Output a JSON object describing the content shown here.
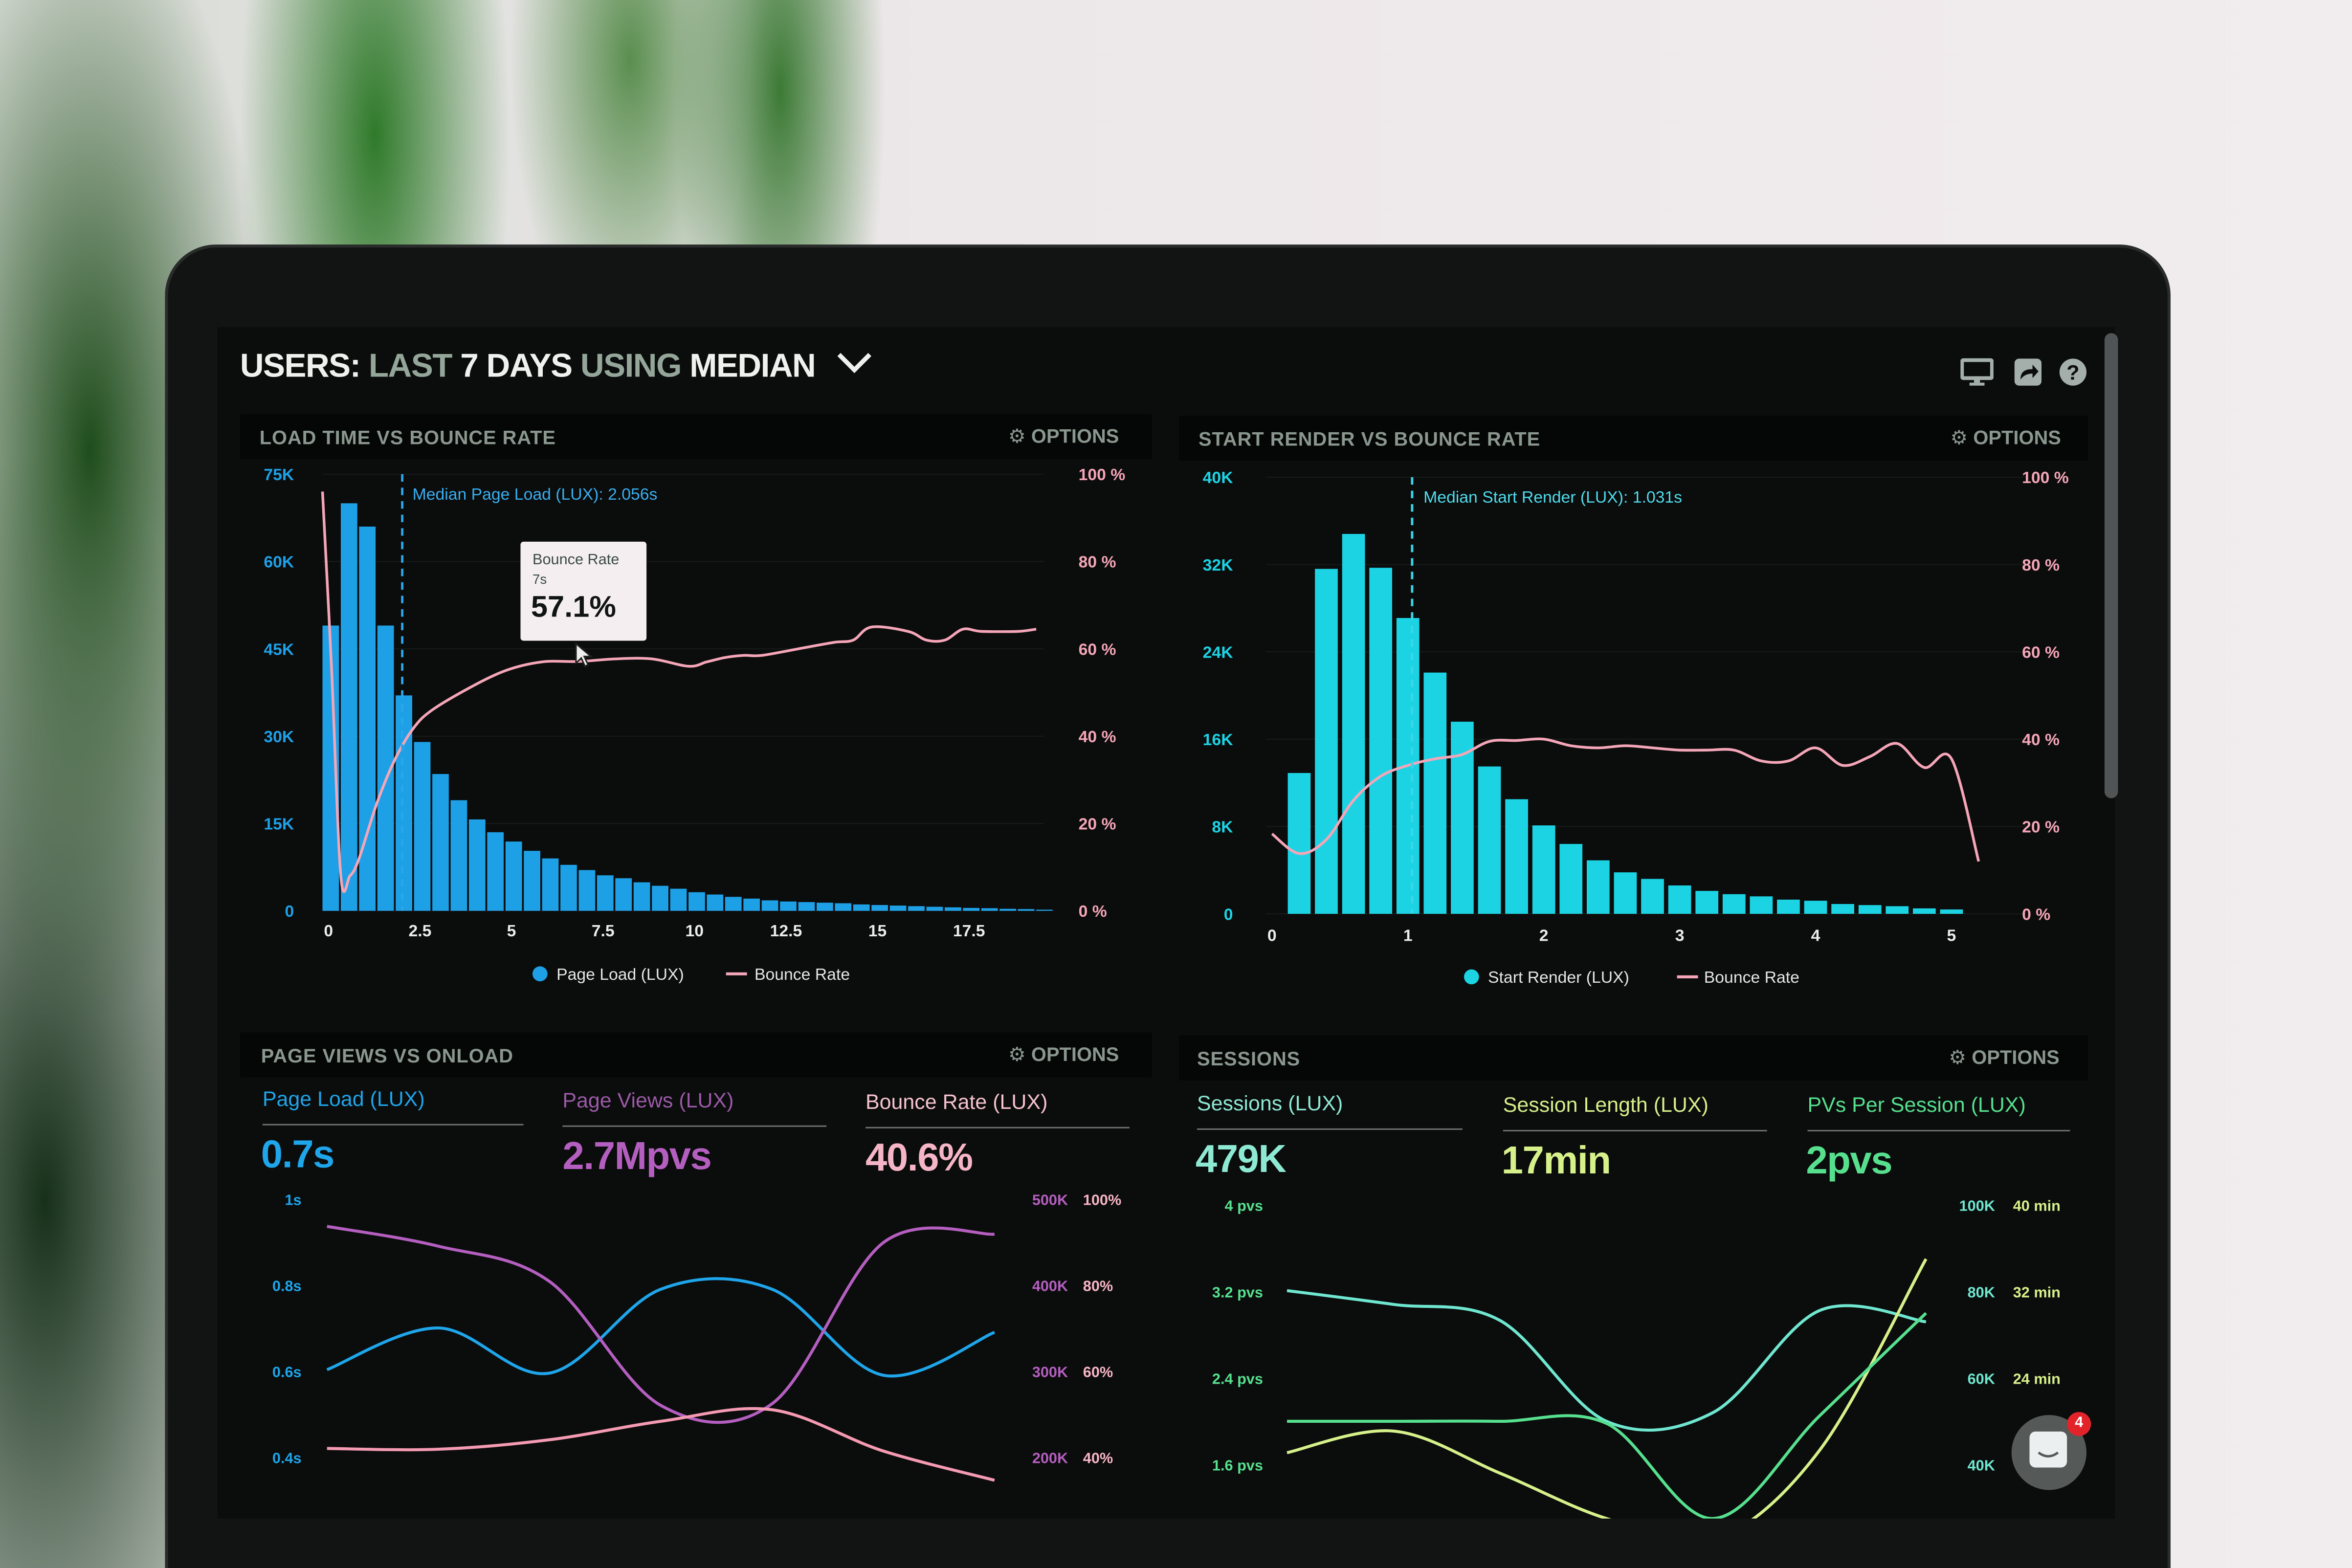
{
  "header": {
    "title_parts": [
      "USERS:",
      "LAST",
      "7 DAYS",
      "USING",
      "MEDIAN"
    ],
    "icons": [
      "monitor-icon",
      "share-icon",
      "help-icon"
    ]
  },
  "panels": {
    "load_time": {
      "title": "LOAD TIME VS BOUNCE RATE",
      "options_label": "OPTIONS"
    },
    "start_render": {
      "title": "START RENDER VS BOUNCE RATE",
      "options_label": "OPTIONS"
    },
    "page_views": {
      "title": "PAGE VIEWS VS ONLOAD",
      "options_label": "OPTIONS",
      "metrics": [
        {
          "label": "Page Load (LUX)",
          "value": "0.7s",
          "color": "#1ea5ea"
        },
        {
          "label": "Page Views (LUX)",
          "value": "2.7Mpvs",
          "color": "#b45fc0"
        },
        {
          "label": "Bounce Rate (LUX)",
          "value": "40.6%",
          "color": "#f6a9bd"
        }
      ]
    },
    "sessions": {
      "title": "SESSIONS",
      "options_label": "OPTIONS",
      "metrics": [
        {
          "label": "Sessions (LUX)",
          "value": "479K",
          "color": "#6fe6cf"
        },
        {
          "label": "Session Length (LUX)",
          "value": "17min",
          "color": "#d6f08a"
        },
        {
          "label": "PVs Per Session (LUX)",
          "value": "2pvs",
          "color": "#56e08e"
        }
      ]
    }
  },
  "tooltip": {
    "series": "Bounce Rate",
    "x": "7s",
    "value": "57.1%"
  },
  "chat": {
    "badge_count": "4"
  },
  "colors": {
    "blue": "#1ea0e6",
    "cyan": "#1cd3e4",
    "pink": "#f4a6b8",
    "purple": "#b45fc0",
    "teal": "#6fe6cf",
    "green": "#56e08e",
    "yellow": "#d6f08a"
  },
  "chart_data": [
    {
      "type": "bar",
      "annotation": "Median Page Load (LUX): 2.056s",
      "median_x": 2.056,
      "x_ticks": [
        {
          "value": 0,
          "label": "0"
        },
        {
          "value": 2.5,
          "label": "2.5"
        },
        {
          "value": 5,
          "label": "5"
        },
        {
          "value": 7.5,
          "label": "7.5"
        },
        {
          "value": 10,
          "label": "10"
        },
        {
          "value": 12.5,
          "label": "12.5"
        },
        {
          "value": 15,
          "label": "15"
        },
        {
          "value": 17.5,
          "label": "17.5"
        }
      ],
      "y_left": {
        "min": 0,
        "max": 75000,
        "ticks": [
          {
            "value": 0,
            "label": "0"
          },
          {
            "value": 15000,
            "label": "15K"
          },
          {
            "value": 30000,
            "label": "30K"
          },
          {
            "value": 45000,
            "label": "45K"
          },
          {
            "value": 60000,
            "label": "60K"
          },
          {
            "value": 75000,
            "label": "75K"
          }
        ]
      },
      "y_right": {
        "min": 0,
        "max": 100,
        "ticks": [
          {
            "value": 0,
            "label": "0 %"
          },
          {
            "value": 20,
            "label": "20 %"
          },
          {
            "value": 40,
            "label": "40 %"
          },
          {
            "value": 60,
            "label": "60 %"
          },
          {
            "value": 80,
            "label": "80 %"
          },
          {
            "value": 100,
            "label": "100 %"
          }
        ]
      },
      "legend": "bottom",
      "series": [
        {
          "name": "Page Load (LUX)",
          "kind": "bar",
          "axis": "left",
          "color": "#1ea0e6",
          "bin_width": 0.5,
          "x": [
            0,
            0.5,
            1,
            1.5,
            2,
            2.5,
            3,
            3.5,
            4,
            4.5,
            5,
            5.5,
            6,
            6.5,
            7,
            7.5,
            8,
            8.5,
            9,
            9.5,
            10,
            10.5,
            11,
            11.5,
            12,
            12.5,
            13,
            13.5,
            14,
            14.5,
            15,
            15.5,
            16,
            16.5,
            17,
            17.5,
            18,
            18.5,
            19,
            19.5
          ],
          "values": [
            49000,
            70000,
            66000,
            49000,
            37000,
            29000,
            23500,
            19000,
            15700,
            13500,
            11900,
            10300,
            9000,
            7900,
            7000,
            6100,
            5600,
            4900,
            4300,
            3800,
            3200,
            2800,
            2400,
            2100,
            1800,
            1600,
            1500,
            1400,
            1300,
            1100,
            1000,
            900,
            800,
            700,
            600,
            500,
            450,
            350,
            300,
            200
          ]
        },
        {
          "name": "Bounce Rate",
          "kind": "line",
          "axis": "right",
          "color": "#f4a6b8",
          "x": [
            0,
            0.25,
            0.5,
            0.75,
            1,
            1.5,
            2,
            2.5,
            3,
            4,
            5,
            6,
            7,
            8,
            9,
            10,
            10.5,
            11,
            11.5,
            12,
            13,
            14,
            14.5,
            15,
            16,
            16.5,
            17,
            17.5,
            18,
            19,
            19.5
          ],
          "values": [
            96,
            55,
            8,
            8,
            12,
            25,
            35,
            42,
            46,
            51,
            55,
            57,
            57.1,
            57.7,
            57.7,
            56,
            57,
            58,
            58.5,
            58.5,
            60,
            61.5,
            62,
            65,
            64,
            62,
            62,
            64.5,
            64,
            64,
            64.5
          ]
        }
      ]
    },
    {
      "type": "bar",
      "annotation": "Median Start Render (LUX): 1.031s",
      "median_x": 1.031,
      "x_ticks": [
        {
          "value": 0,
          "label": "0"
        },
        {
          "value": 1,
          "label": "1"
        },
        {
          "value": 2,
          "label": "2"
        },
        {
          "value": 3,
          "label": "3"
        },
        {
          "value": 4,
          "label": "4"
        },
        {
          "value": 5,
          "label": "5"
        }
      ],
      "y_left": {
        "min": 0,
        "max": 40000,
        "ticks": [
          {
            "value": 0,
            "label": "0"
          },
          {
            "value": 8000,
            "label": "8K"
          },
          {
            "value": 16000,
            "label": "16K"
          },
          {
            "value": 24000,
            "label": "24K"
          },
          {
            "value": 32000,
            "label": "32K"
          },
          {
            "value": 40000,
            "label": "40K"
          }
        ]
      },
      "y_right": {
        "min": 0,
        "max": 100,
        "ticks": [
          {
            "value": 0,
            "label": "0 %"
          },
          {
            "value": 20,
            "label": "20 %"
          },
          {
            "value": 40,
            "label": "40 %"
          },
          {
            "value": 60,
            "label": "60 %"
          },
          {
            "value": 80,
            "label": "80 %"
          },
          {
            "value": 100,
            "label": "100 %"
          }
        ]
      },
      "legend": "bottom",
      "series": [
        {
          "name": "Start Render (LUX)",
          "kind": "bar",
          "axis": "left",
          "color": "#1cd3e4",
          "bin_width": 0.2,
          "x": [
            0.2,
            0.4,
            0.6,
            0.8,
            1.0,
            1.2,
            1.4,
            1.6,
            1.8,
            2.0,
            2.2,
            2.4,
            2.6,
            2.8,
            3.0,
            3.2,
            3.4,
            3.6,
            3.8,
            4.0,
            4.2,
            4.4,
            4.6,
            4.8,
            5.0
          ],
          "values": [
            12900,
            31600,
            34800,
            31700,
            27100,
            22100,
            17600,
            13500,
            10500,
            8100,
            6400,
            4900,
            3800,
            3200,
            2600,
            2100,
            1800,
            1600,
            1300,
            1200,
            900,
            800,
            700,
            500,
            400
          ]
        },
        {
          "name": "Bounce Rate",
          "kind": "line",
          "axis": "right",
          "color": "#f4a6b8",
          "x": [
            0,
            0.2,
            0.4,
            0.6,
            0.8,
            1.0,
            1.2,
            1.4,
            1.6,
            1.8,
            2.0,
            2.2,
            2.4,
            2.6,
            2.8,
            3.0,
            3.2,
            3.4,
            3.6,
            3.8,
            4.0,
            4.2,
            4.4,
            4.6,
            4.8,
            5.0,
            5.2
          ],
          "values": [
            18.3,
            13.8,
            17,
            26,
            31.5,
            34,
            35.5,
            36.5,
            39.5,
            39.7,
            40,
            38.5,
            38,
            38.5,
            38,
            37.5,
            37.5,
            37.5,
            35,
            35,
            38,
            34,
            36,
            39,
            33.5,
            35.5,
            12
          ]
        }
      ]
    },
    {
      "type": "line",
      "y_left": {
        "min": 0.4,
        "max": 1,
        "ticks": [
          {
            "value": 0.4,
            "label": "0.4s"
          },
          {
            "value": 0.6,
            "label": "0.6s"
          },
          {
            "value": 0.8,
            "label": "0.8s"
          },
          {
            "value": 1,
            "label": "1s"
          }
        ]
      },
      "y_right": {
        "min": 200000,
        "max": 500000,
        "ticks": [
          {
            "value": 200000,
            "label": "200K"
          },
          {
            "value": 300000,
            "label": "300K"
          },
          {
            "value": 400000,
            "label": "400K"
          },
          {
            "value": 500000,
            "label": "500K"
          }
        ]
      },
      "y_right2": {
        "min": 40,
        "max": 100,
        "ticks": [
          {
            "value": 40,
            "label": "40%"
          },
          {
            "value": 60,
            "label": "60%"
          },
          {
            "value": 80,
            "label": "80%"
          },
          {
            "value": 100,
            "label": "100%"
          }
        ]
      },
      "series": [
        {
          "name": "Page Load (LUX)",
          "axis": "left",
          "color": "#1ea5ea",
          "values": [
            0.603,
            0.7,
            0.595,
            0.79,
            0.79,
            0.59,
            0.69
          ]
        },
        {
          "name": "Page Views (LUX)",
          "axis": "right",
          "color": "#b45fc0",
          "values": [
            468000,
            445000,
            404000,
            260000,
            262000,
            449000,
            459000
          ]
        },
        {
          "name": "Bounce Rate (LUX)",
          "axis": "right2",
          "color": "#f49ab2",
          "values": [
            42,
            41.8,
            44,
            48.3,
            51,
            41.4,
            34.6
          ]
        }
      ]
    },
    {
      "type": "line",
      "y_left": {
        "min": 1.6,
        "max": 4,
        "ticks": [
          {
            "value": 1.6,
            "label": "1.6 pvs"
          },
          {
            "value": 2.4,
            "label": "2.4 pvs"
          },
          {
            "value": 3.2,
            "label": "3.2 pvs"
          },
          {
            "value": 4,
            "label": "4 pvs"
          }
        ]
      },
      "y_right": {
        "min": 40000,
        "max": 100000,
        "ticks": [
          {
            "value": 40000,
            "label": "40K"
          },
          {
            "value": 60000,
            "label": "60K"
          },
          {
            "value": 80000,
            "label": "80K"
          },
          {
            "value": 100000,
            "label": "100K"
          }
        ]
      },
      "y_right2": {
        "min": 16,
        "max": 40,
        "ticks": [
          {
            "value": 24,
            "label": "24 min"
          },
          {
            "value": 32,
            "label": "32 min"
          },
          {
            "value": 40,
            "label": "40 min"
          }
        ]
      },
      "series": [
        {
          "name": "Sessions (LUX)",
          "axis": "right",
          "color": "#6fe6cf",
          "values": [
            80200,
            77000,
            73300,
            50000,
            52000,
            75600,
            73000
          ]
        },
        {
          "name": "Session Length (LUX)",
          "axis": "right2",
          "color": "#d6f08a",
          "values": [
            17.1,
            19.1,
            15.2,
            11,
            9,
            17.3,
            35
          ]
        },
        {
          "name": "PVs Per Session (LUX)",
          "axis": "left",
          "color": "#56e08e",
          "values": [
            2.0,
            2.0,
            2.0,
            1.98,
            1.1,
            2.05,
            3.0
          ]
        }
      ]
    }
  ]
}
